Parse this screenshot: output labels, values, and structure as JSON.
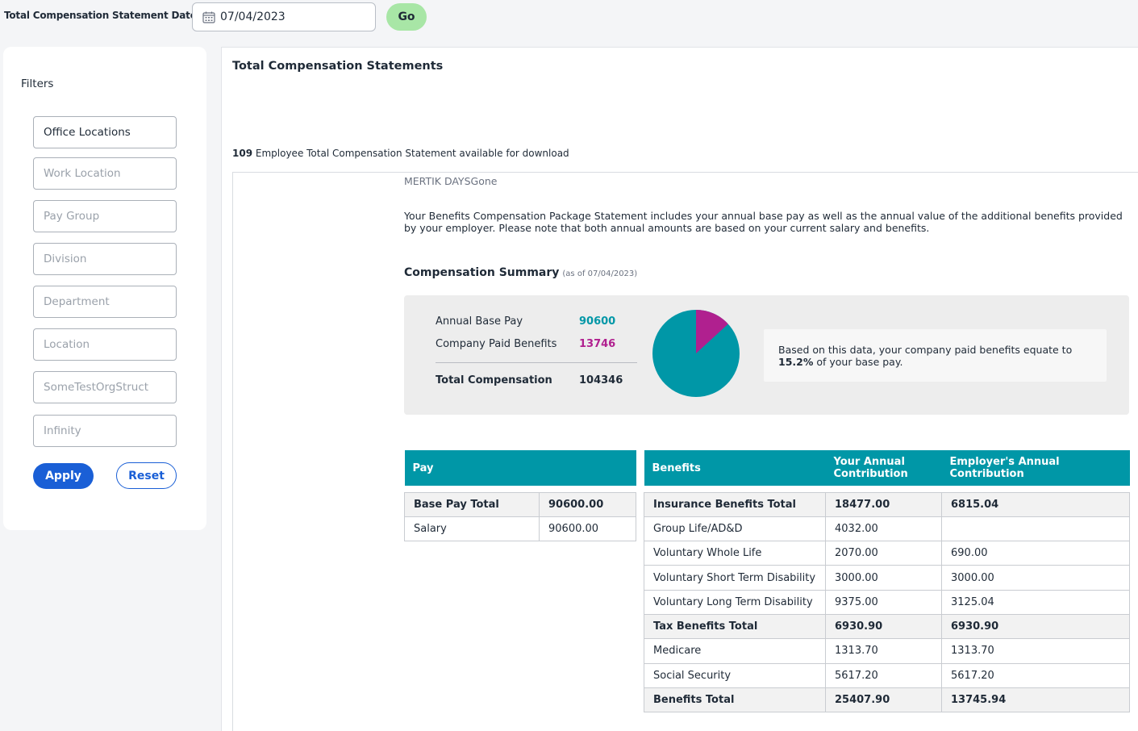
{
  "topbar": {
    "label": "Total Compensation Statement Date",
    "date_value": "07/04/2023",
    "go_label": "Go"
  },
  "filters": {
    "title": "Filters",
    "fields": [
      {
        "label": "Office Locations",
        "active": true
      },
      {
        "label": "Work Location",
        "active": false
      },
      {
        "label": "Pay Group",
        "active": false
      },
      {
        "label": "Division",
        "active": false
      },
      {
        "label": "Department",
        "active": false
      },
      {
        "label": "Location",
        "active": false
      },
      {
        "label": "SomeTestOrgStruct",
        "active": false
      },
      {
        "label": "Infinity",
        "active": false
      }
    ],
    "apply_label": "Apply",
    "reset_label": "Reset"
  },
  "main": {
    "title": "Total Compensation Statements",
    "available_count": "109",
    "available_text": "Employee Total Compensation Statement available for download"
  },
  "statement": {
    "employee_name": "MERTIK DAYSGone",
    "intro": "Your Benefits Compensation Package Statement includes your annual base pay as well as the annual value of the additional benefits provided by your employer. Please note that both annual amounts are based on your current salary and benefits.",
    "summary_title": "Compensation Summary",
    "summary_asof": "(as of 07/04/2023)",
    "annual_base_pay_label": "Annual Base Pay",
    "annual_base_pay": "90600",
    "company_benefits_label": "Company Paid Benefits",
    "company_benefits": "13746",
    "total_comp_label": "Total Compensation",
    "total_comp": "104346",
    "note_prefix": "Based on this data, your company paid benefits equate to",
    "note_pct": "15.2%",
    "note_suffix": "of your base pay.",
    "colors": {
      "base": "#0097a7",
      "benefits": "#b0208f"
    }
  },
  "pay_table": {
    "headers": [
      "Pay",
      ""
    ],
    "rows": [
      {
        "label": "Base Pay Total",
        "value": "90600.00",
        "bold": true
      },
      {
        "label": "Salary",
        "value": "90600.00",
        "bold": false
      }
    ]
  },
  "benefits_table": {
    "headers": [
      "Benefits",
      "Your Annual Contribution",
      "Employer's Annual Contribution"
    ],
    "rows": [
      {
        "label": "Insurance Benefits Total",
        "yours": "18477.00",
        "employer": "6815.04",
        "bold": true
      },
      {
        "label": "Group Life/AD&D",
        "yours": "4032.00",
        "employer": "",
        "bold": false
      },
      {
        "label": "Voluntary Whole Life",
        "yours": "2070.00",
        "employer": "690.00",
        "bold": false
      },
      {
        "label": "Voluntary Short Term Disability",
        "yours": "3000.00",
        "employer": "3000.00",
        "bold": false
      },
      {
        "label": "Voluntary Long Term Disability",
        "yours": "9375.00",
        "employer": "3125.04",
        "bold": false
      },
      {
        "label": "Tax Benefits Total",
        "yours": "6930.90",
        "employer": "6930.90",
        "bold": true
      },
      {
        "label": "Medicare",
        "yours": "1313.70",
        "employer": "1313.70",
        "bold": false
      },
      {
        "label": "Social Security",
        "yours": "5617.20",
        "employer": "5617.20",
        "bold": false
      },
      {
        "label": "Benefits Total",
        "yours": "25407.90",
        "employer": "13745.94",
        "bold": true
      }
    ]
  }
}
